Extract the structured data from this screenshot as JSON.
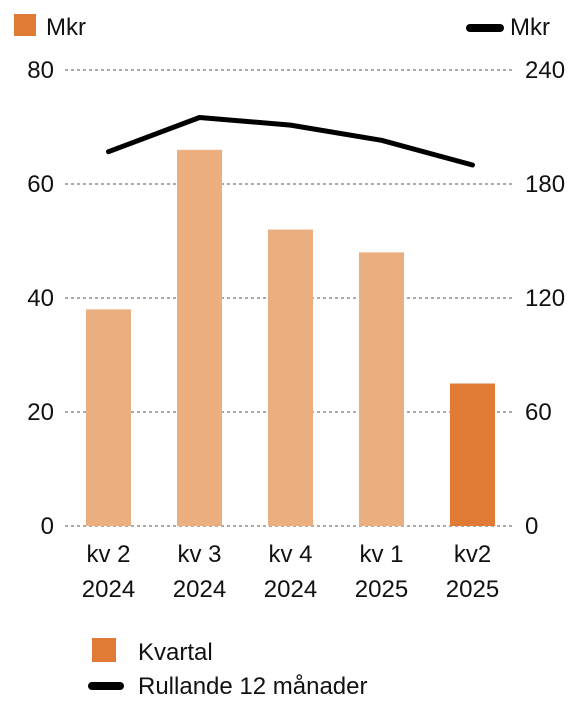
{
  "chart_data": {
    "type": "bar",
    "left_unit": "Mkr",
    "right_unit": "Mkr",
    "categories": [
      [
        "kv 2",
        "2024"
      ],
      [
        "kv 3",
        "2024"
      ],
      [
        "kv 4",
        "2024"
      ],
      [
        "kv 1",
        "2025"
      ],
      [
        "kv2",
        "2025"
      ]
    ],
    "series": [
      {
        "name": "Kvartal",
        "type": "bar",
        "axis": "left",
        "values": [
          38,
          66,
          52,
          48,
          25
        ],
        "colors": [
          "#ebae7e",
          "#ebae7e",
          "#ebae7e",
          "#ebae7e",
          "#e07b35"
        ]
      },
      {
        "name": "Rullande 12 månader",
        "type": "line",
        "axis": "right",
        "values": [
          197,
          215,
          211,
          203,
          190
        ],
        "color": "#000000"
      }
    ],
    "y_left": {
      "ylim": [
        0,
        80
      ],
      "ticks": [
        "0",
        "20",
        "40",
        "60",
        "80"
      ]
    },
    "y_right": {
      "ylim": [
        0,
        240
      ],
      "ticks": [
        "0",
        "60",
        "120",
        "180",
        "240"
      ]
    },
    "grid": "dashed horizontal",
    "legend_position": "bottom-left"
  }
}
